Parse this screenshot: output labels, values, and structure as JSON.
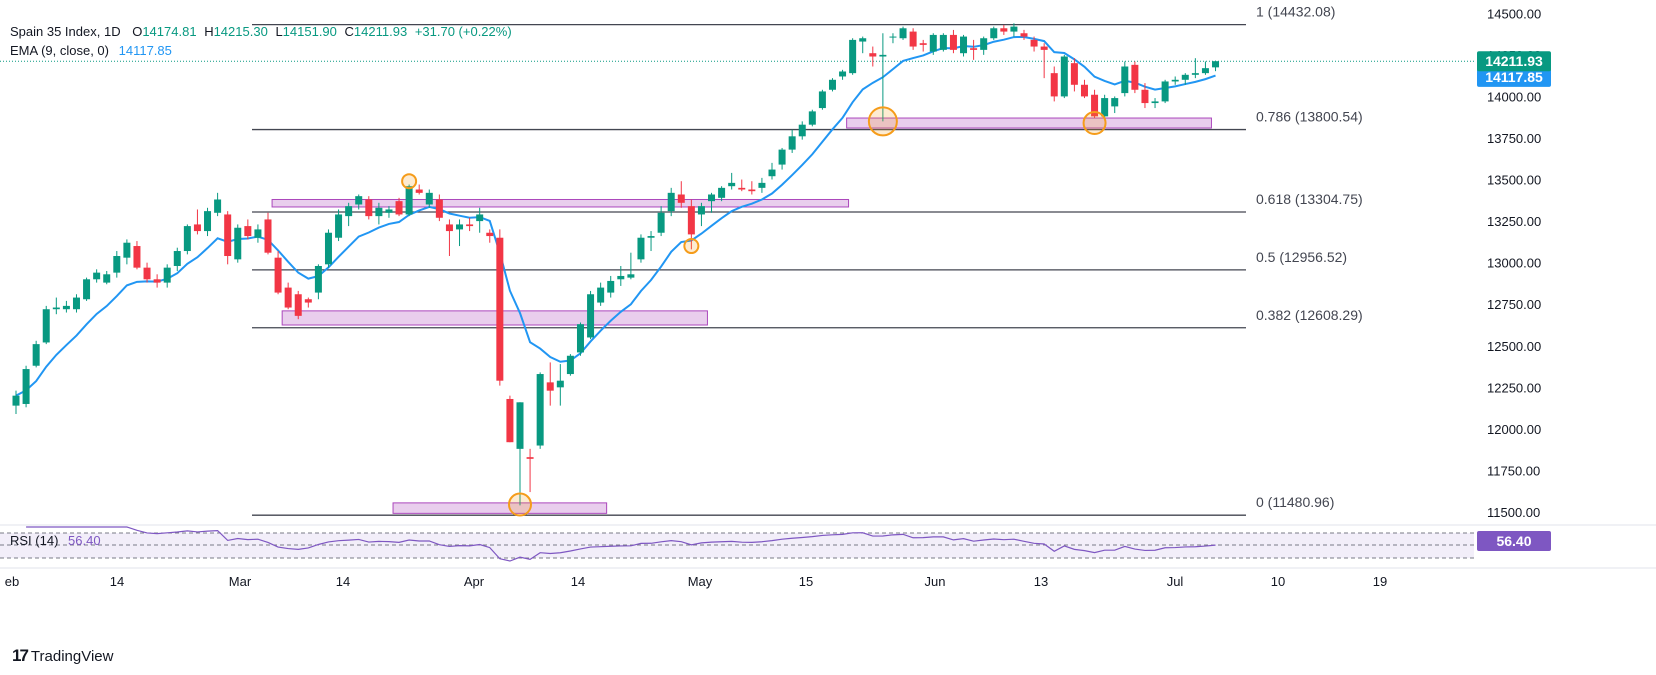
{
  "header": {
    "symbol": "Spain 35 Index, 1D",
    "o_label": "O",
    "o_value": "14174.81",
    "h_label": "H",
    "h_value": "14215.30",
    "l_label": "L",
    "l_value": "14151.90",
    "c_label": "C",
    "c_value": "14211.93",
    "change": "+31.70 (+0.22%)",
    "ema_label": "EMA (9, close, 0)",
    "ema_value": "14117.85",
    "rsi_label": "RSI (14)",
    "rsi_value": "56.40"
  },
  "brand": {
    "logo": "17",
    "name": "TradingView"
  },
  "colors": {
    "up": "#089981",
    "down": "#f23645",
    "ema": "#2196f3",
    "rsi": "#7e57c2",
    "zone": "#e1bee7",
    "circle": "#f59c1a"
  },
  "chart_data": {
    "type": "candlestick",
    "price_axis": {
      "range": [
        11440,
        14580
      ],
      "ticks": [
        11500,
        11750,
        12000,
        12250,
        12500,
        12750,
        13000,
        13250,
        13500,
        13750,
        14000,
        14250,
        14500
      ],
      "tick_labels": [
        "11500.00",
        "11750.00",
        "12000.00",
        "12250.00",
        "12500.00",
        "12750.00",
        "13000.00",
        "13250.00",
        "13500.00",
        "13750.00",
        "14000.00",
        "14250.00",
        "14500.00"
      ]
    },
    "time_axis": {
      "labels": [
        "eb",
        "14",
        "Mar",
        "14",
        "Apr",
        "14",
        "May",
        "15",
        "Jun",
        "13",
        "Jul",
        "10",
        "19"
      ]
    },
    "last_price": {
      "value": 14211.93,
      "label": "14211.93"
    },
    "ema_tag": {
      "value": 14117.85,
      "label": "14117.85"
    },
    "fib_levels": [
      {
        "value": 14432.08,
        "label": "1 (14432.08)"
      },
      {
        "value": 13800.54,
        "label": "0.786 (13800.54)"
      },
      {
        "value": 13304.75,
        "label": "0.618 (13304.75)"
      },
      {
        "value": 12956.52,
        "label": "0.5 (12956.52)"
      },
      {
        "value": 12608.29,
        "label": "0.382 (12608.29)"
      },
      {
        "value": 11480.96,
        "label": "0 (11480.96)"
      }
    ],
    "zones": [
      {
        "from": 13335,
        "to": 13380
      },
      {
        "from": 12625,
        "to": 12710
      },
      {
        "from": 11492,
        "to": 11555
      },
      {
        "from": 13810,
        "to": 13870
      }
    ],
    "candles": [
      {
        "o": 12140,
        "h": 12230,
        "l": 12090,
        "c": 12200
      },
      {
        "o": 12150,
        "h": 12380,
        "l": 12130,
        "c": 12360
      },
      {
        "o": 12380,
        "h": 12530,
        "l": 12370,
        "c": 12510
      },
      {
        "o": 12520,
        "h": 12740,
        "l": 12510,
        "c": 12720
      },
      {
        "o": 12720,
        "h": 12790,
        "l": 12690,
        "c": 12730
      },
      {
        "o": 12720,
        "h": 12770,
        "l": 12700,
        "c": 12740
      },
      {
        "o": 12720,
        "h": 12810,
        "l": 12700,
        "c": 12790
      },
      {
        "o": 12780,
        "h": 12910,
        "l": 12770,
        "c": 12900
      },
      {
        "o": 12900,
        "h": 12960,
        "l": 12880,
        "c": 12940
      },
      {
        "o": 12880,
        "h": 12950,
        "l": 12870,
        "c": 12930
      },
      {
        "o": 12940,
        "h": 13070,
        "l": 12910,
        "c": 13040
      },
      {
        "o": 13030,
        "h": 13140,
        "l": 12990,
        "c": 13120
      },
      {
        "o": 13100,
        "h": 13130,
        "l": 12960,
        "c": 12970
      },
      {
        "o": 12970,
        "h": 13000,
        "l": 12880,
        "c": 12900
      },
      {
        "o": 12900,
        "h": 12930,
        "l": 12850,
        "c": 12880
      },
      {
        "o": 12880,
        "h": 12990,
        "l": 12850,
        "c": 12970
      },
      {
        "o": 12980,
        "h": 13090,
        "l": 12950,
        "c": 13070
      },
      {
        "o": 13070,
        "h": 13230,
        "l": 13050,
        "c": 13220
      },
      {
        "o": 13230,
        "h": 13320,
        "l": 13170,
        "c": 13190
      },
      {
        "o": 13190,
        "h": 13330,
        "l": 13160,
        "c": 13310
      },
      {
        "o": 13300,
        "h": 13420,
        "l": 13280,
        "c": 13380
      },
      {
        "o": 13290,
        "h": 13310,
        "l": 12990,
        "c": 13040
      },
      {
        "o": 13020,
        "h": 13230,
        "l": 13000,
        "c": 13210
      },
      {
        "o": 13220,
        "h": 13260,
        "l": 13140,
        "c": 13160
      },
      {
        "o": 13150,
        "h": 13230,
        "l": 13120,
        "c": 13200
      },
      {
        "o": 13260,
        "h": 13300,
        "l": 13050,
        "c": 13060
      },
      {
        "o": 13030,
        "h": 13070,
        "l": 12810,
        "c": 12820
      },
      {
        "o": 12850,
        "h": 12880,
        "l": 12720,
        "c": 12730
      },
      {
        "o": 12810,
        "h": 12830,
        "l": 12660,
        "c": 12680
      },
      {
        "o": 12780,
        "h": 12790,
        "l": 12730,
        "c": 12760
      },
      {
        "o": 12820,
        "h": 12990,
        "l": 12780,
        "c": 12980
      },
      {
        "o": 12990,
        "h": 13200,
        "l": 12970,
        "c": 13180
      },
      {
        "o": 13150,
        "h": 13320,
        "l": 13130,
        "c": 13290
      },
      {
        "o": 13280,
        "h": 13360,
        "l": 13220,
        "c": 13340
      },
      {
        "o": 13350,
        "h": 13410,
        "l": 13320,
        "c": 13400
      },
      {
        "o": 13380,
        "h": 13400,
        "l": 13260,
        "c": 13280
      },
      {
        "o": 13280,
        "h": 13360,
        "l": 13230,
        "c": 13330
      },
      {
        "o": 13300,
        "h": 13340,
        "l": 13270,
        "c": 13320
      },
      {
        "o": 13370,
        "h": 13390,
        "l": 13280,
        "c": 13290
      },
      {
        "o": 13290,
        "h": 13470,
        "l": 13280,
        "c": 13460
      },
      {
        "o": 13440,
        "h": 13470,
        "l": 13410,
        "c": 13420
      },
      {
        "o": 13350,
        "h": 13440,
        "l": 13330,
        "c": 13420
      },
      {
        "o": 13380,
        "h": 13410,
        "l": 13250,
        "c": 13270
      },
      {
        "o": 13230,
        "h": 13260,
        "l": 13040,
        "c": 13190
      },
      {
        "o": 13200,
        "h": 13260,
        "l": 13100,
        "c": 13230
      },
      {
        "o": 13230,
        "h": 13270,
        "l": 13190,
        "c": 13220
      },
      {
        "o": 13250,
        "h": 13330,
        "l": 13180,
        "c": 13290
      },
      {
        "o": 13180,
        "h": 13200,
        "l": 13120,
        "c": 13160
      },
      {
        "o": 13150,
        "h": 13200,
        "l": 12260,
        "c": 12290
      },
      {
        "o": 12180,
        "h": 12200,
        "l": 11920,
        "c": 11920
      },
      {
        "o": 11880,
        "h": 12160,
        "l": 11540,
        "c": 12160
      },
      {
        "o": 11830,
        "h": 11880,
        "l": 11620,
        "c": 11820
      },
      {
        "o": 11900,
        "h": 12340,
        "l": 11880,
        "c": 12330
      },
      {
        "o": 12280,
        "h": 12400,
        "l": 12140,
        "c": 12230
      },
      {
        "o": 12250,
        "h": 12390,
        "l": 12140,
        "c": 12290
      },
      {
        "o": 12330,
        "h": 12450,
        "l": 12320,
        "c": 12440
      },
      {
        "o": 12460,
        "h": 12640,
        "l": 12440,
        "c": 12630
      },
      {
        "o": 12550,
        "h": 12830,
        "l": 12540,
        "c": 12810
      },
      {
        "o": 12760,
        "h": 12880,
        "l": 12740,
        "c": 12850
      },
      {
        "o": 12820,
        "h": 12920,
        "l": 12790,
        "c": 12890
      },
      {
        "o": 12900,
        "h": 12980,
        "l": 12860,
        "c": 12920
      },
      {
        "o": 12910,
        "h": 13060,
        "l": 12900,
        "c": 12930
      },
      {
        "o": 13020,
        "h": 13170,
        "l": 13000,
        "c": 13150
      },
      {
        "o": 13150,
        "h": 13190,
        "l": 13070,
        "c": 13160
      },
      {
        "o": 13180,
        "h": 13340,
        "l": 13160,
        "c": 13300
      },
      {
        "o": 13310,
        "h": 13450,
        "l": 13280,
        "c": 13420
      },
      {
        "o": 13410,
        "h": 13490,
        "l": 13330,
        "c": 13360
      },
      {
        "o": 13340,
        "h": 13380,
        "l": 13080,
        "c": 13170
      },
      {
        "o": 13290,
        "h": 13360,
        "l": 13220,
        "c": 13340
      },
      {
        "o": 13370,
        "h": 13420,
        "l": 13300,
        "c": 13410
      },
      {
        "o": 13390,
        "h": 13460,
        "l": 13370,
        "c": 13450
      },
      {
        "o": 13460,
        "h": 13540,
        "l": 13440,
        "c": 13480
      },
      {
        "o": 13450,
        "h": 13500,
        "l": 13430,
        "c": 13440
      },
      {
        "o": 13440,
        "h": 13490,
        "l": 13410,
        "c": 13430
      },
      {
        "o": 13450,
        "h": 13510,
        "l": 13420,
        "c": 13480
      },
      {
        "o": 13520,
        "h": 13600,
        "l": 13500,
        "c": 13560
      },
      {
        "o": 13590,
        "h": 13690,
        "l": 13560,
        "c": 13680
      },
      {
        "o": 13680,
        "h": 13800,
        "l": 13660,
        "c": 13760
      },
      {
        "o": 13760,
        "h": 13850,
        "l": 13740,
        "c": 13830
      },
      {
        "o": 13830,
        "h": 13920,
        "l": 13820,
        "c": 13910
      },
      {
        "o": 13930,
        "h": 14040,
        "l": 13920,
        "c": 14030
      },
      {
        "o": 14040,
        "h": 14110,
        "l": 14030,
        "c": 14100
      },
      {
        "o": 14120,
        "h": 14160,
        "l": 14100,
        "c": 14150
      },
      {
        "o": 14140,
        "h": 14350,
        "l": 14130,
        "c": 14340
      },
      {
        "o": 14330,
        "h": 14360,
        "l": 14260,
        "c": 14350
      },
      {
        "o": 14260,
        "h": 14300,
        "l": 14180,
        "c": 14240
      },
      {
        "o": 14240,
        "h": 14380,
        "l": 13850,
        "c": 14250
      },
      {
        "o": 14360,
        "h": 14380,
        "l": 14320,
        "c": 14360
      },
      {
        "o": 14350,
        "h": 14420,
        "l": 14340,
        "c": 14410
      },
      {
        "o": 14390,
        "h": 14410,
        "l": 14280,
        "c": 14300
      },
      {
        "o": 14320,
        "h": 14340,
        "l": 14270,
        "c": 14310
      },
      {
        "o": 14270,
        "h": 14380,
        "l": 14250,
        "c": 14370
      },
      {
        "o": 14280,
        "h": 14380,
        "l": 14270,
        "c": 14370
      },
      {
        "o": 14370,
        "h": 14400,
        "l": 14260,
        "c": 14280
      },
      {
        "o": 14260,
        "h": 14370,
        "l": 14240,
        "c": 14360
      },
      {
        "o": 14290,
        "h": 14340,
        "l": 14220,
        "c": 14280
      },
      {
        "o": 14280,
        "h": 14360,
        "l": 14250,
        "c": 14350
      },
      {
        "o": 14350,
        "h": 14420,
        "l": 14340,
        "c": 14410
      },
      {
        "o": 14410,
        "h": 14430,
        "l": 14370,
        "c": 14390
      },
      {
        "o": 14390,
        "h": 14440,
        "l": 14360,
        "c": 14420
      },
      {
        "o": 14380,
        "h": 14400,
        "l": 14340,
        "c": 14360
      },
      {
        "o": 14340,
        "h": 14360,
        "l": 14270,
        "c": 14300
      },
      {
        "o": 14300,
        "h": 14320,
        "l": 14110,
        "c": 14280
      },
      {
        "o": 14140,
        "h": 14180,
        "l": 13970,
        "c": 14000
      },
      {
        "o": 14000,
        "h": 14250,
        "l": 13990,
        "c": 14240
      },
      {
        "o": 14200,
        "h": 14230,
        "l": 14030,
        "c": 14070
      },
      {
        "o": 14070,
        "h": 14100,
        "l": 13990,
        "c": 14000
      },
      {
        "o": 14010,
        "h": 14040,
        "l": 13870,
        "c": 13880
      },
      {
        "o": 13880,
        "h": 14010,
        "l": 13860,
        "c": 13990
      },
      {
        "o": 13940,
        "h": 14000,
        "l": 13900,
        "c": 13990
      },
      {
        "o": 14020,
        "h": 14210,
        "l": 14000,
        "c": 14180
      },
      {
        "o": 14190,
        "h": 14210,
        "l": 14020,
        "c": 14040
      },
      {
        "o": 14040,
        "h": 14080,
        "l": 13930,
        "c": 13960
      },
      {
        "o": 13960,
        "h": 13990,
        "l": 13930,
        "c": 13970
      },
      {
        "o": 13970,
        "h": 14100,
        "l": 13960,
        "c": 14090
      },
      {
        "o": 14090,
        "h": 14120,
        "l": 14070,
        "c": 14100
      },
      {
        "o": 14100,
        "h": 14140,
        "l": 14070,
        "c": 14130
      },
      {
        "o": 14130,
        "h": 14230,
        "l": 14110,
        "c": 14140
      },
      {
        "o": 14140,
        "h": 14210,
        "l": 14130,
        "c": 14170
      },
      {
        "o": 14174.81,
        "h": 14215.3,
        "l": 14151.9,
        "c": 14211.93
      }
    ],
    "circles": [
      {
        "candle": 39,
        "price": 13490,
        "r": 7
      },
      {
        "candle": 67,
        "price": 13100,
        "r": 7
      },
      {
        "candle": 50,
        "price": 11545,
        "r": 11
      },
      {
        "candle": 86,
        "price": 13850,
        "r": 14
      },
      {
        "candle": 107,
        "price": 13840,
        "r": 11
      }
    ]
  }
}
